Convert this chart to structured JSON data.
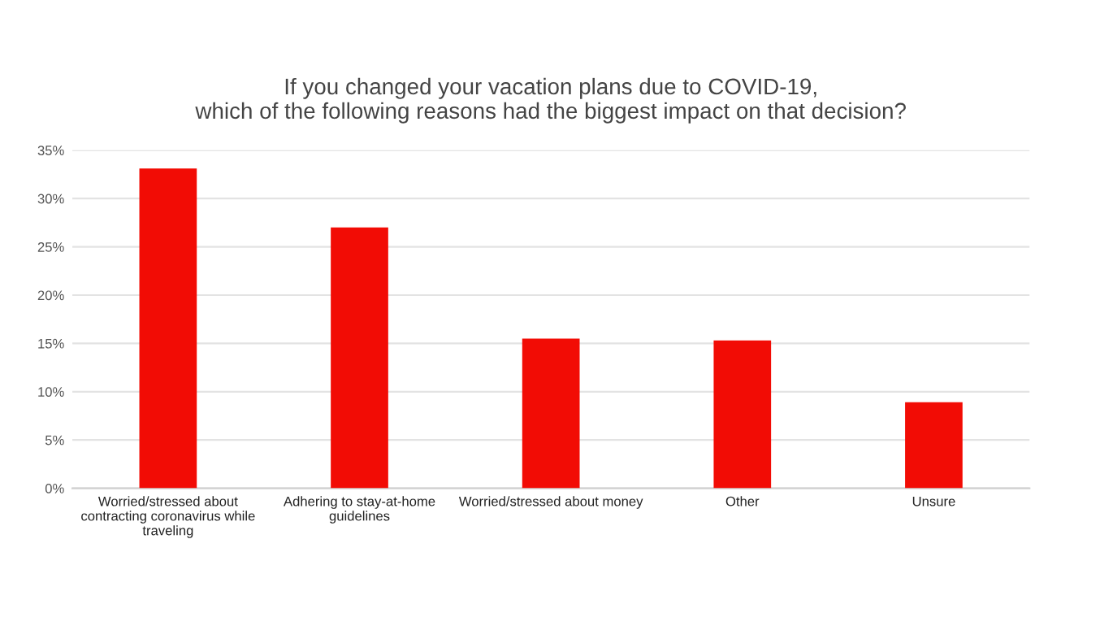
{
  "chart_data": {
    "type": "bar",
    "title": "If you changed your vacation plans due to COVID-19,\nwhich of the following reasons had the biggest impact on that decision?",
    "categories": [
      "Worried/stressed about\ncontracting coronavirus while\ntraveling",
      "Adhering to stay-at-home\nguidelines",
      "Worried/stressed about money",
      "Other",
      "Unsure"
    ],
    "values": [
      33.1,
      27.0,
      15.5,
      15.3,
      8.9
    ],
    "color": "#f20c05",
    "ylim": [
      0,
      35
    ],
    "yticks": [
      {
        "value": 0,
        "label": "0%"
      },
      {
        "value": 5,
        "label": "5%"
      },
      {
        "value": 10,
        "label": "10%"
      },
      {
        "value": 15,
        "label": "15%"
      },
      {
        "value": 20,
        "label": "20%"
      },
      {
        "value": 25,
        "label": "25%"
      },
      {
        "value": 30,
        "label": "30%"
      },
      {
        "value": 35,
        "label": "35%"
      }
    ],
    "grid": "y"
  }
}
